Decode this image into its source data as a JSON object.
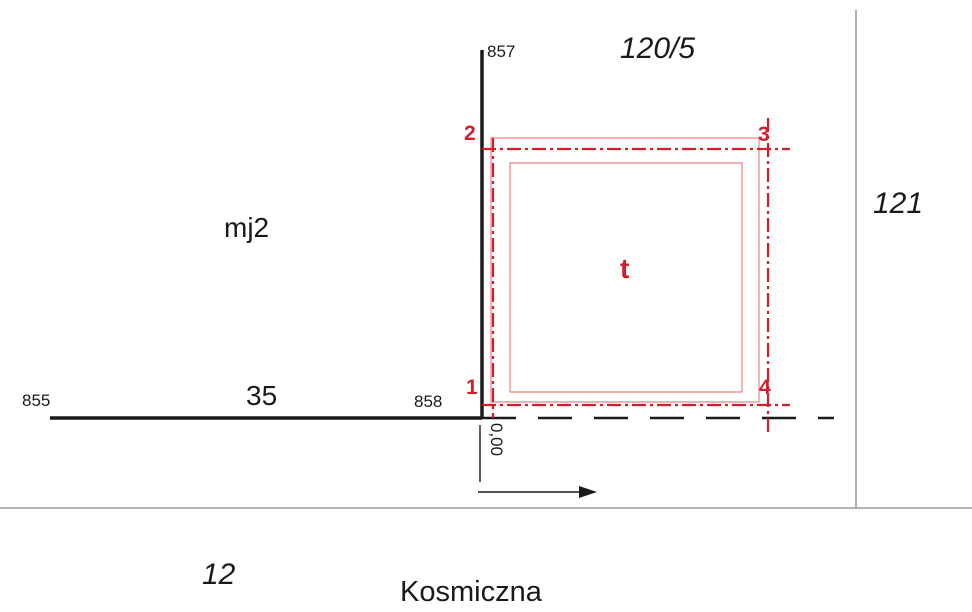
{
  "colors": {
    "line": "#1a1a1a",
    "accent": "#d01f2a",
    "boundary": "#9a9a9a",
    "thin_red": "#f08080"
  },
  "points": {
    "p857": "857",
    "p855": "855",
    "p858": "858"
  },
  "parcels": {
    "p120_5": "120/5",
    "p121": "121",
    "p12": "12"
  },
  "labels": {
    "mj2": "mj2",
    "length": "35",
    "zone": "t",
    "offset": "0,00",
    "street": "Kosmiczna"
  },
  "corners": [
    "1",
    "2",
    "3",
    "4"
  ]
}
